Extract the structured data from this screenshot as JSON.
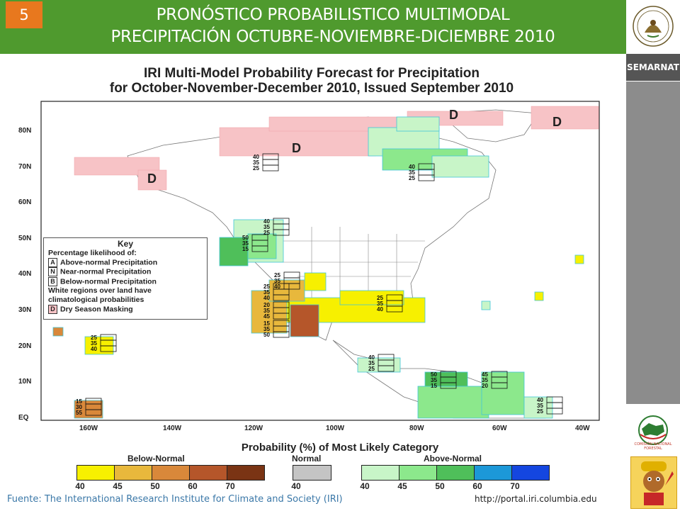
{
  "header": {
    "slide_number": "5",
    "title_line1": "PRONÓSTICO PROBABILISTICO MULTIMODAL",
    "title_line2": "PRECIPITACIÓN OCTUBRE-NOVIEMBRE-DICIEMBRE 2010"
  },
  "sidebar": {
    "org1": "SEMARNAT",
    "org2": "COMISIÓN NACIONAL FORESTAL"
  },
  "figure": {
    "title_line1": "IRI Multi-Model Probability Forecast for Precipitation",
    "title_line2": "for October-November-December 2010, Issued September 2010",
    "lat_labels": [
      "80N",
      "70N",
      "60N",
      "50N",
      "40N",
      "30N",
      "20N",
      "10N",
      "EQ"
    ],
    "lon_labels": [
      "160W",
      "140W",
      "120W",
      "100W",
      "80W",
      "60W",
      "40W"
    ],
    "dry_mark": "D",
    "key": {
      "title": "Key",
      "subtitle": "Percentage likelihood of:",
      "a_letter": "A",
      "a_label": "Above-normal Precipitation",
      "n_letter": "N",
      "n_label": "Near-normal Precipitation",
      "b_letter": "B",
      "b_label": "Below-normal Precipitation",
      "note_line1": "White regions over land have",
      "note_line2": "climatological probabilities",
      "d_letter": "D",
      "d_label": "Dry Season Masking"
    },
    "stacks": [
      {
        "v": [
          "40",
          "35",
          "25"
        ]
      },
      {
        "v": [
          "40",
          "35",
          "25"
        ]
      },
      {
        "v": [
          "40",
          "35",
          "25"
        ]
      },
      {
        "v": [
          "50",
          "35",
          "15"
        ]
      },
      {
        "v": [
          "25",
          "35",
          "40"
        ]
      },
      {
        "v": [
          "25",
          "35",
          "40"
        ]
      },
      {
        "v": [
          "20",
          "35",
          "45"
        ]
      },
      {
        "v": [
          "15",
          "35",
          "50"
        ]
      },
      {
        "v": [
          "25",
          "35",
          "40"
        ]
      },
      {
        "v": [
          "25",
          "35",
          "40"
        ]
      },
      {
        "v": [
          "40",
          "35",
          "25"
        ]
      },
      {
        "v": [
          "50",
          "35",
          "15"
        ]
      },
      {
        "v": [
          "45",
          "35",
          "20"
        ]
      },
      {
        "v": [
          "40",
          "35",
          "25"
        ]
      },
      {
        "v": [
          "15",
          "30",
          "55"
        ]
      }
    ],
    "legend": {
      "title": "Probability (%) of Most Likely Category",
      "below_label": "Below-Normal",
      "normal_label": "Normal",
      "above_label": "Above-Normal",
      "below_levels": [
        "40",
        "45",
        "50",
        "60",
        "70"
      ],
      "normal_levels": [
        "40"
      ],
      "above_levels": [
        "40",
        "45",
        "50",
        "60",
        "70"
      ],
      "below_colors": [
        "#f7f000",
        "#e8b83c",
        "#d9883a",
        "#b5562a",
        "#7a3414"
      ],
      "normal_colors": [
        "#c4c4c4"
      ],
      "above_colors": [
        "#c8f5c8",
        "#8ce88c",
        "#4fbf5a",
        "#1c98d8",
        "#1446e0"
      ]
    }
  },
  "footer": {
    "source": "Fuente: The International Research Institute for Climate and Society (IRI)",
    "url": "http://portal.iri.columbia.edu"
  }
}
